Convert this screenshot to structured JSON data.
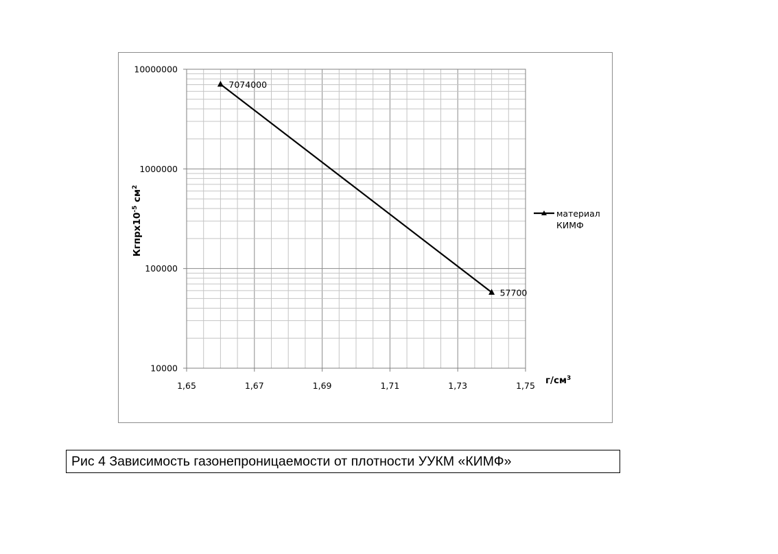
{
  "chart_data": {
    "type": "line",
    "x": [
      1.66,
      1.74
    ],
    "series": [
      {
        "name": "материал КИМФ",
        "values": [
          7074000,
          57700
        ],
        "data_labels": [
          "7074000",
          "57700"
        ],
        "marker": "triangle",
        "color": "#000000"
      }
    ],
    "xlim": [
      1.65,
      1.75
    ],
    "ylim": [
      10000,
      10000000
    ],
    "yscale": "log",
    "x_ticks": [
      "1,65",
      "1,67",
      "1,69",
      "1,71",
      "1,73",
      "1,75"
    ],
    "y_ticks": [
      "10000",
      "100000",
      "1000000",
      "10000000"
    ],
    "ylabel": {
      "base": "Кгпрх10",
      "sup1": "-5",
      "mid": " см",
      "sup2": "2"
    },
    "xlabel": {
      "base": "г/см",
      "sup": "3"
    },
    "legend": {
      "line1": "материал",
      "line2": "КИМФ",
      "position": "right"
    },
    "grid": true
  },
  "caption": "Рис 4 Зависимость газонепроницаемости от плотности УУКМ «КИМФ»"
}
